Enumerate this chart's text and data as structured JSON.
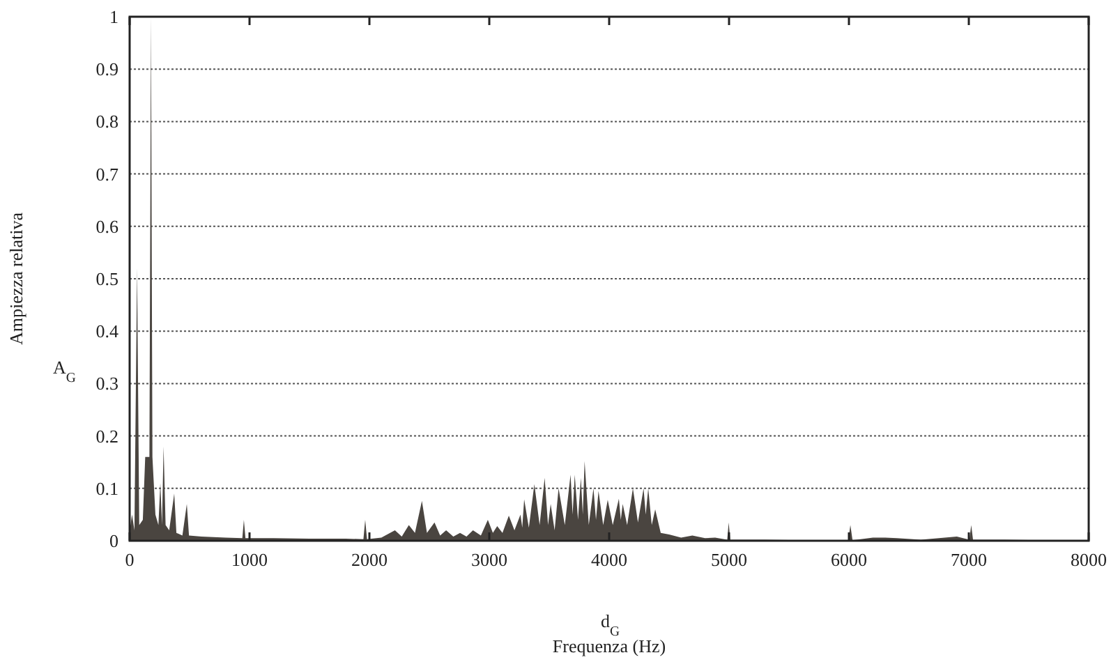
{
  "chart_data": {
    "type": "area",
    "xlabel": "Frequenza (Hz)",
    "ylabel": "Ampiezza relativa",
    "annotations": [
      "A$_{G}$",
      "d$_{G}$"
    ],
    "xlim": [
      0,
      8000
    ],
    "xticks": [
      0,
      1000,
      2000,
      3000,
      4000,
      5000,
      6000,
      7000,
      8000
    ],
    "ylim": [
      0,
      1
    ],
    "yticks": [
      0,
      0.1,
      0.2,
      0.3,
      0.4,
      0.5,
      0.6,
      0.7,
      0.8,
      0.9,
      1
    ],
    "grid": "y",
    "series": [
      {
        "color": "#4a4540",
        "x": [
          0,
          20,
          40,
          62,
          80,
          110,
          130,
          165,
          178,
          190,
          215,
          240,
          256,
          270,
          283,
          300,
          330,
          372,
          390,
          440,
          477,
          495,
          600,
          800,
          940,
          953,
          966,
          1200,
          1500,
          1800,
          1950,
          1965,
          1980,
          2100,
          2213,
          2270,
          2329,
          2380,
          2438,
          2480,
          2543,
          2590,
          2640,
          2700,
          2756,
          2810,
          2864,
          2930,
          2988,
          3030,
          3066,
          3110,
          3163,
          3210,
          3260,
          3275,
          3291,
          3330,
          3376,
          3420,
          3462,
          3490,
          3512,
          3545,
          3578,
          3630,
          3678,
          3695,
          3713,
          3740,
          3764,
          3780,
          3795,
          3830,
          3869,
          3890,
          3911,
          3950,
          3988,
          4030,
          4081,
          4097,
          4113,
          4150,
          4198,
          4240,
          4287,
          4305,
          4326,
          4355,
          4384,
          4430,
          4500,
          4600,
          4694,
          4800,
          4884,
          4985,
          4997,
          5010,
          5300,
          5600,
          5995,
          6012,
          6030,
          6200,
          6300,
          6400,
          6600,
          6800,
          6900,
          7005,
          7020,
          7035,
          7300,
          7600,
          8000
        ],
        "values": [
          0.02,
          0.05,
          0.02,
          0.52,
          0.03,
          0.04,
          0.16,
          0.16,
          1,
          0.16,
          0.05,
          0.03,
          0.11,
          0.03,
          0.18,
          0.03,
          0.02,
          0.09,
          0.015,
          0.01,
          0.07,
          0.01,
          0.008,
          0.006,
          0.005,
          0.04,
          0.005,
          0.005,
          0.004,
          0.004,
          0.003,
          0.04,
          0.003,
          0.006,
          0.02,
          0.008,
          0.03,
          0.015,
          0.076,
          0.015,
          0.035,
          0.01,
          0.02,
          0.008,
          0.015,
          0.008,
          0.02,
          0.01,
          0.04,
          0.015,
          0.028,
          0.015,
          0.048,
          0.02,
          0.05,
          0.025,
          0.079,
          0.025,
          0.108,
          0.03,
          0.12,
          0.03,
          0.07,
          0.02,
          0.1,
          0.03,
          0.126,
          0.05,
          0.126,
          0.04,
          0.12,
          0.05,
          0.152,
          0.03,
          0.1,
          0.04,
          0.095,
          0.03,
          0.078,
          0.03,
          0.08,
          0.04,
          0.07,
          0.03,
          0.1,
          0.035,
          0.1,
          0.05,
          0.1,
          0.03,
          0.06,
          0.015,
          0.012,
          0.006,
          0.01,
          0.005,
          0.006,
          0.002,
          0.035,
          0.002,
          0.002,
          0.001,
          0.001,
          0.03,
          0.001,
          0.006,
          0.006,
          0.005,
          0.002,
          0.006,
          0.008,
          0.002,
          0.03,
          0.002,
          0.002,
          0.001,
          0.001
        ]
      }
    ]
  }
}
